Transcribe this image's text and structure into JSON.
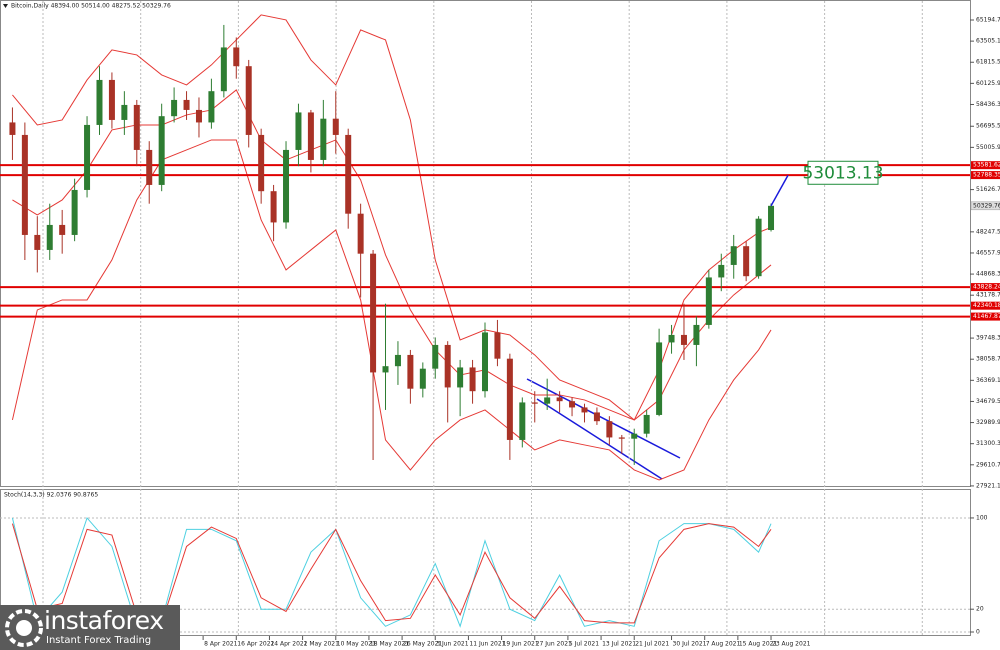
{
  "chart_data": [
    {
      "type": "candlestick",
      "title": "Bitcoin,Daily  48394.00 50514.00 48275.52 50329.76",
      "xlim": [
        "2021-02-18",
        "2021-10-10"
      ],
      "xticks": [
        {
          "value": "2021-04-08",
          "label": "8 Apr 2021"
        },
        {
          "value": "2021-04-16",
          "label": "16 Apr 2021"
        },
        {
          "value": "2021-04-24",
          "label": "24 Apr 2021"
        },
        {
          "value": "2021-05-02",
          "label": "2 May 2021"
        },
        {
          "value": "2021-05-10",
          "label": "10 May 2021"
        },
        {
          "value": "2021-05-18",
          "label": "18 May 2021"
        },
        {
          "value": "2021-05-26",
          "label": "26 May 2021"
        },
        {
          "value": "2021-06-03",
          "label": "3 Jun 2021"
        },
        {
          "value": "2021-06-11",
          "label": "11 Jun 2021"
        },
        {
          "value": "2021-06-19",
          "label": "19 Jun 2021"
        },
        {
          "value": "2021-06-27",
          "label": "27 Jun 2021"
        },
        {
          "value": "2021-07-05",
          "label": "5 Jul 2021"
        },
        {
          "value": "2021-07-13",
          "label": "13 Jul 2021"
        },
        {
          "value": "2021-07-21",
          "label": "21 Jul 2021"
        },
        {
          "value": "2021-07-30",
          "label": "30 Jul 2021"
        },
        {
          "value": "2021-08-07",
          "label": "7 Aug 2021"
        },
        {
          "value": "2021-08-15",
          "label": "15 Aug 2021"
        },
        {
          "value": "2021-08-23",
          "label": "23 Aug 2021"
        }
      ],
      "ylim": [
        27835,
        66795
      ],
      "yticks": [
        {
          "value": 65194.7,
          "label": "65194.70"
        },
        {
          "value": 63505.1,
          "label": "63505.10"
        },
        {
          "value": 61815.5,
          "label": "61815.50"
        },
        {
          "value": 60125.9,
          "label": "60125.90"
        },
        {
          "value": 58436.3,
          "label": "58436.30"
        },
        {
          "value": 56695.5,
          "label": "56695.50"
        },
        {
          "value": 55005.9,
          "label": "55005.90"
        },
        {
          "value": 51626.7,
          "label": "51626.70"
        },
        {
          "value": 48247.5,
          "label": "48247.50"
        },
        {
          "value": 46557.9,
          "label": "46557.90"
        },
        {
          "value": 44868.3,
          "label": "44868.30"
        },
        {
          "value": 43178.7,
          "label": "43178.70"
        },
        {
          "value": 39748.3,
          "label": "39748.30"
        },
        {
          "value": 38058.7,
          "label": "38058.70"
        },
        {
          "value": 36369.1,
          "label": "36369.10"
        },
        {
          "value": 34679.5,
          "label": "34679.50"
        },
        {
          "value": 32989.9,
          "label": "32989.90"
        },
        {
          "value": 31300.3,
          "label": "31300.30"
        },
        {
          "value": 29610.7,
          "label": "29610.70"
        },
        {
          "value": 27921.1,
          "label": "27921.10"
        }
      ],
      "x": [
        "2021-02-21",
        "2021-02-24",
        "2021-02-27",
        "2021-03-02",
        "2021-03-05",
        "2021-03-08",
        "2021-03-11",
        "2021-03-14",
        "2021-03-17",
        "2021-03-20",
        "2021-03-23",
        "2021-03-26",
        "2021-03-29",
        "2021-04-01",
        "2021-04-04",
        "2021-04-07",
        "2021-04-10",
        "2021-04-13",
        "2021-04-16",
        "2021-04-19",
        "2021-04-22",
        "2021-04-25",
        "2021-04-28",
        "2021-05-01",
        "2021-05-04",
        "2021-05-07",
        "2021-05-10",
        "2021-05-13",
        "2021-05-16",
        "2021-05-19",
        "2021-05-22",
        "2021-05-25",
        "2021-05-28",
        "2021-05-31",
        "2021-06-03",
        "2021-06-06",
        "2021-06-09",
        "2021-06-12",
        "2021-06-15",
        "2021-06-18",
        "2021-06-21",
        "2021-06-24",
        "2021-06-27",
        "2021-06-30",
        "2021-07-03",
        "2021-07-06",
        "2021-07-09",
        "2021-07-12",
        "2021-07-15",
        "2021-07-18",
        "2021-07-21",
        "2021-07-24",
        "2021-07-27",
        "2021-07-30",
        "2021-08-02",
        "2021-08-05",
        "2021-08-08",
        "2021-08-11",
        "2021-08-14",
        "2021-08-17",
        "2021-08-20",
        "2021-08-23"
      ],
      "ohlc": [
        [
          57000,
          58200,
          54000,
          56000
        ],
        [
          56000,
          57000,
          46000,
          48000
        ],
        [
          48000,
          49500,
          45000,
          46800
        ],
        [
          46800,
          50500,
          46000,
          48800
        ],
        [
          48800,
          50000,
          46500,
          48000
        ],
        [
          48000,
          52500,
          47500,
          51600
        ],
        [
          51600,
          57500,
          51000,
          56800
        ],
        [
          56800,
          61500,
          56000,
          60400
        ],
        [
          60400,
          61000,
          56500,
          57200
        ],
        [
          57200,
          59500,
          56000,
          58400
        ],
        [
          58400,
          58800,
          53500,
          54800
        ],
        [
          54800,
          55500,
          50500,
          52000
        ],
        [
          52000,
          58500,
          51500,
          57500
        ],
        [
          57500,
          59800,
          57000,
          58800
        ],
        [
          58800,
          59500,
          57200,
          58000
        ],
        [
          58000,
          59000,
          55800,
          57000
        ],
        [
          57000,
          60500,
          56500,
          59500
        ],
        [
          59500,
          64800,
          59000,
          63000
        ],
        [
          63000,
          63800,
          60500,
          61500
        ],
        [
          61500,
          62000,
          55000,
          56000
        ],
        [
          56000,
          56500,
          50500,
          51500
        ],
        [
          51500,
          52000,
          47500,
          49000
        ],
        [
          49000,
          55500,
          48500,
          54800
        ],
        [
          54800,
          58500,
          53500,
          57800
        ],
        [
          57800,
          58000,
          53000,
          54000
        ],
        [
          54000,
          58800,
          53500,
          57300
        ],
        [
          57300,
          59500,
          54500,
          56000
        ],
        [
          56000,
          56500,
          48500,
          49700
        ],
        [
          49700,
          50500,
          43000,
          46500
        ],
        [
          46500,
          46800,
          30000,
          37000
        ],
        [
          37000,
          42500,
          34000,
          37500
        ],
        [
          37500,
          39500,
          36000,
          38400
        ],
        [
          38400,
          38800,
          34500,
          35700
        ],
        [
          35700,
          37800,
          35000,
          37300
        ],
        [
          37300,
          39800,
          36500,
          39200
        ],
        [
          39200,
          39500,
          33000,
          35800
        ],
        [
          35800,
          38000,
          33500,
          37400
        ],
        [
          37400,
          38000,
          34500,
          35500
        ],
        [
          35500,
          41000,
          35000,
          40200
        ],
        [
          40200,
          41200,
          37500,
          38100
        ],
        [
          38100,
          38500,
          30000,
          31600
        ],
        [
          31600,
          35000,
          31000,
          34600
        ],
        [
          34600,
          35500,
          33000,
          34500
        ],
        [
          34500,
          36500,
          34000,
          35000
        ],
        [
          35000,
          35500,
          33800,
          34700
        ],
        [
          34700,
          35000,
          33500,
          34200
        ],
        [
          34200,
          34500,
          33000,
          33800
        ],
        [
          33800,
          34200,
          32800,
          33100
        ],
        [
          33100,
          33500,
          31200,
          31800
        ],
        [
          31800,
          32000,
          30500,
          31700
        ],
        [
          31700,
          32500,
          29600,
          32100
        ],
        [
          32100,
          34000,
          31800,
          33600
        ],
        [
          33600,
          40500,
          33500,
          39400
        ],
        [
          39400,
          40800,
          38500,
          40000
        ],
        [
          40000,
          42500,
          38000,
          39200
        ],
        [
          39200,
          41500,
          37500,
          40800
        ],
        [
          40800,
          45200,
          40500,
          44600
        ],
        [
          44600,
          46500,
          43500,
          45600
        ],
        [
          45600,
          48000,
          44500,
          47100
        ],
        [
          47100,
          47500,
          44300,
          44700
        ],
        [
          44700,
          49500,
          44500,
          49300
        ],
        [
          48394,
          50514,
          48275.52,
          50329.76
        ]
      ],
      "up_color": "#2e7d32",
      "down_color": "#a93226",
      "bands": {
        "color": "#e53935",
        "x": [
          "2021-02-21",
          "2021-02-27",
          "2021-03-05",
          "2021-03-11",
          "2021-03-17",
          "2021-03-23",
          "2021-03-29",
          "2021-04-04",
          "2021-04-10",
          "2021-04-16",
          "2021-04-22",
          "2021-04-28",
          "2021-05-04",
          "2021-05-10",
          "2021-05-16",
          "2021-05-22",
          "2021-05-28",
          "2021-06-03",
          "2021-06-09",
          "2021-06-15",
          "2021-06-21",
          "2021-06-27",
          "2021-07-03",
          "2021-07-09",
          "2021-07-15",
          "2021-07-21",
          "2021-07-27",
          "2021-08-02",
          "2021-08-08",
          "2021-08-14",
          "2021-08-20",
          "2021-08-23"
        ],
        "upper": [
          59200,
          56800,
          57200,
          60400,
          62800,
          62400,
          60800,
          60000,
          61600,
          63600,
          65600,
          65200,
          62000,
          60000,
          64400,
          63600,
          57200,
          46000,
          39600,
          40400,
          40000,
          38400,
          36400,
          35600,
          34800,
          33200,
          37200,
          42800,
          45200,
          46800,
          48200,
          48600
        ],
        "middle": [
          50800,
          49600,
          50800,
          53200,
          56400,
          56800,
          56800,
          57600,
          58000,
          59600,
          55600,
          54000,
          54800,
          55600,
          52400,
          46400,
          42000,
          38800,
          36800,
          37200,
          36000,
          35200,
          35200,
          34800,
          34000,
          33200,
          34800,
          38800,
          41200,
          43200,
          44800,
          45600
        ],
        "lower": [
          33200,
          42000,
          42800,
          42800,
          46000,
          50800,
          54000,
          54800,
          55600,
          55600,
          49200,
          45200,
          46800,
          48400,
          42800,
          31600,
          29200,
          31600,
          33200,
          34000,
          32400,
          30800,
          31600,
          31200,
          30800,
          29200,
          28400,
          29200,
          33200,
          36400,
          38800,
          40400
        ]
      },
      "hlines": [
        53581.62,
        52788.35,
        43828.24,
        42340.18,
        41467.87
      ],
      "hline_color": "#e00000",
      "target": 53013.13,
      "target_color": "#1e8c3a",
      "trend_color": "#1a1adb"
    },
    {
      "type": "line",
      "title": "Stoch(14,3,3) 92.0376 90.8765",
      "xlim": [
        "2021-02-18",
        "2021-10-10"
      ],
      "ylim": [
        -3.5,
        124.5
      ],
      "yticks": [
        100,
        20,
        0
      ],
      "x": [
        "2021-02-21",
        "2021-02-27",
        "2021-03-05",
        "2021-03-11",
        "2021-03-17",
        "2021-03-23",
        "2021-03-29",
        "2021-04-04",
        "2021-04-10",
        "2021-04-16",
        "2021-04-22",
        "2021-04-28",
        "2021-05-04",
        "2021-05-10",
        "2021-05-16",
        "2021-05-22",
        "2021-05-28",
        "2021-06-03",
        "2021-06-09",
        "2021-06-15",
        "2021-06-21",
        "2021-06-27",
        "2021-07-03",
        "2021-07-09",
        "2021-07-15",
        "2021-07-21",
        "2021-07-27",
        "2021-08-02",
        "2021-08-08",
        "2021-08-14",
        "2021-08-20",
        "2021-08-23"
      ],
      "series": [
        {
          "color": "#4dd0e1",
          "values": [
            100,
            10,
            35,
            100,
            75,
            5,
            10,
            90,
            90,
            80,
            20,
            20,
            70,
            90,
            30,
            5,
            15,
            60,
            5,
            80,
            20,
            10,
            50,
            5,
            10,
            5,
            80,
            95,
            95,
            90,
            70,
            95
          ]
        },
        {
          "color": "#e53935",
          "values": [
            95,
            20,
            25,
            90,
            85,
            15,
            8,
            75,
            92,
            82,
            30,
            18,
            55,
            90,
            45,
            10,
            12,
            50,
            15,
            70,
            30,
            12,
            40,
            10,
            8,
            8,
            65,
            90,
            95,
            92,
            75,
            90
          ]
        }
      ]
    }
  ],
  "watermark": {
    "brand": "instaforex",
    "tagline": "Instant Forex Trading"
  }
}
